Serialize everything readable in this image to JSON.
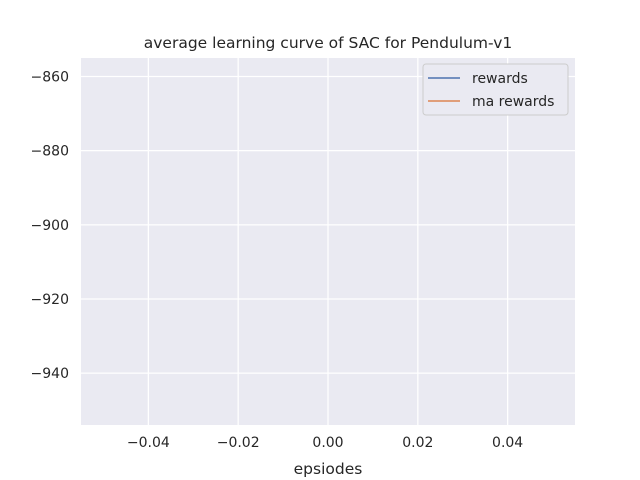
{
  "chart_data": {
    "type": "line",
    "title": "average learning curve of SAC for Pendulum-v1",
    "xlabel": "epsiodes",
    "ylabel": "",
    "xlim": [
      -0.055,
      0.055
    ],
    "ylim": [
      -954,
      -855
    ],
    "xticks": [
      -0.04,
      -0.02,
      0.0,
      0.02,
      0.04
    ],
    "xtick_labels": [
      "−0.04",
      "−0.02",
      "0.00",
      "0.02",
      "0.04"
    ],
    "yticks": [
      -860,
      -880,
      -900,
      -920,
      -940
    ],
    "ytick_labels": [
      "−860",
      "−880",
      "−900",
      "−920",
      "−940"
    ],
    "grid": true,
    "legend_position": "top-right",
    "series": [
      {
        "name": "rewards",
        "color": "#4c72b0",
        "x": [],
        "y": []
      },
      {
        "name": "ma rewards",
        "color": "#dd8452",
        "x": [],
        "y": []
      }
    ],
    "colors": {
      "plot_background": "#eaeaf2",
      "grid": "#ffffff",
      "text": "#262626"
    }
  }
}
